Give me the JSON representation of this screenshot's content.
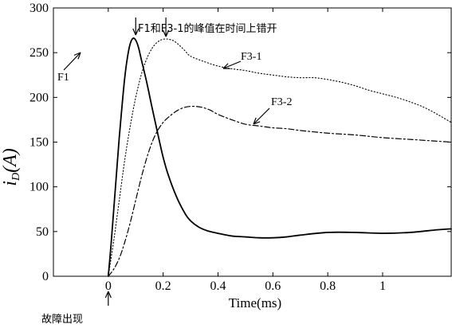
{
  "chart_data": {
    "type": "line",
    "title": "",
    "xlabel": "Time(ms)",
    "ylabel_main": "i",
    "ylabel_sub": "D",
    "ylabel_unit": "(A)",
    "xlim": [
      -0.2,
      1.25
    ],
    "ylim": [
      0,
      300
    ],
    "x_ticks": [
      0,
      0.2,
      0.4,
      0.6,
      0.8,
      1
    ],
    "x_tick_labels": [
      "0",
      "0.2",
      "0.4",
      "0.6",
      "0.8",
      "1"
    ],
    "y_ticks": [
      0,
      50,
      100,
      150,
      200,
      250,
      300
    ],
    "y_tick_labels": [
      "0",
      "50",
      "100",
      "150",
      "200",
      "250",
      "300"
    ],
    "grid": false,
    "legend": "none",
    "series": [
      {
        "name": "F1",
        "style": "solid",
        "color": "#000000",
        "x": [
          0,
          0.01,
          0.02,
          0.03,
          0.04,
          0.05,
          0.06,
          0.07,
          0.08,
          0.09,
          0.1,
          0.11,
          0.12,
          0.14,
          0.16,
          0.18,
          0.2,
          0.22,
          0.25,
          0.28,
          0.3,
          0.33,
          0.36,
          0.4,
          0.45,
          0.5,
          0.55,
          0.6,
          0.65,
          0.7,
          0.8,
          0.9,
          1.0,
          1.1,
          1.2,
          1.25
        ],
        "y": [
          0,
          35,
          75,
          115,
          155,
          190,
          222,
          245,
          260,
          266,
          264,
          256,
          243,
          217,
          188,
          160,
          133,
          112,
          88,
          70,
          62,
          55,
          51,
          48,
          45,
          44,
          43,
          43,
          44,
          46,
          49,
          49,
          48,
          49,
          52,
          53
        ]
      },
      {
        "name": "F3-1",
        "style": "dotted",
        "color": "#000000",
        "x": [
          0,
          0.02,
          0.04,
          0.06,
          0.08,
          0.1,
          0.12,
          0.14,
          0.16,
          0.18,
          0.2,
          0.22,
          0.24,
          0.26,
          0.28,
          0.3,
          0.35,
          0.4,
          0.45,
          0.5,
          0.55,
          0.6,
          0.65,
          0.7,
          0.75,
          0.8,
          0.85,
          0.9,
          0.95,
          1.0,
          1.05,
          1.1,
          1.15,
          1.2,
          1.25
        ],
        "y": [
          0,
          40,
          85,
          130,
          168,
          200,
          225,
          243,
          255,
          262,
          265,
          265,
          263,
          258,
          252,
          246,
          240,
          235,
          232,
          230,
          227,
          225,
          223,
          222,
          222,
          220,
          217,
          213,
          208,
          204,
          200,
          195,
          189,
          181,
          172
        ]
      },
      {
        "name": "F3-2",
        "style": "dashdot",
        "color": "#000000",
        "x": [
          0,
          0.02,
          0.04,
          0.06,
          0.08,
          0.1,
          0.12,
          0.14,
          0.16,
          0.18,
          0.2,
          0.22,
          0.25,
          0.28,
          0.31,
          0.34,
          0.37,
          0.4,
          0.45,
          0.5,
          0.55,
          0.6,
          0.65,
          0.7,
          0.8,
          0.9,
          1.0,
          1.1,
          1.2,
          1.25
        ],
        "y": [
          0,
          8,
          20,
          38,
          60,
          85,
          110,
          132,
          150,
          163,
          172,
          178,
          185,
          189,
          190,
          189,
          186,
          181,
          175,
          170,
          168,
          166,
          165,
          163,
          160,
          158,
          155,
          153,
          151,
          150
        ]
      }
    ],
    "annotations": [
      {
        "text": "F1和F3-1的峰值在时间上错开",
        "x": 0.25,
        "y": 280
      },
      {
        "text": "F1",
        "x": -0.01,
        "y": 219
      },
      {
        "text": "F3-1",
        "x": 0.57,
        "y": 245
      },
      {
        "text": "F3-2",
        "x": 0.68,
        "y": 190
      },
      {
        "text": "故障出现",
        "x": 0.0,
        "y": -55
      }
    ]
  }
}
